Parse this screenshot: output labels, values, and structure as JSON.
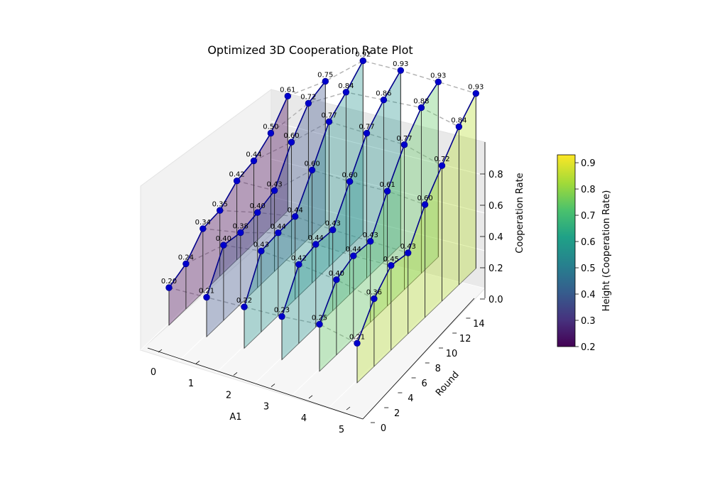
{
  "chart_data": {
    "type": "line",
    "title": "Optimized 3D Cooperation Rate Plot",
    "xlabel": "A1",
    "ylabel": "Round",
    "zlabel": "Cooperation Rate",
    "x_ticks": [
      "0",
      "1",
      "2",
      "3",
      "4",
      "5"
    ],
    "y_ticks": [
      "0",
      "2",
      "4",
      "6",
      "8",
      "10",
      "12",
      "14"
    ],
    "z_ticks": [
      "0.0",
      "0.2",
      "0.4",
      "0.6",
      "0.8"
    ],
    "ylim": [
      0,
      14
    ],
    "zlim": [
      0,
      0.93
    ],
    "rounds_sampled": [
      0,
      2,
      4,
      6,
      8,
      10,
      12,
      14
    ],
    "series": [
      {
        "a1": 0,
        "color": "#440154",
        "values": [
          0.2,
          0.24,
          0.34,
          0.35,
          0.42,
          0.44,
          0.5,
          0.61
        ]
      },
      {
        "a1": 1,
        "color": "#3b528b",
        "values": [
          0.21,
          0.4,
          0.38,
          0.4,
          0.43,
          0.6,
          0.72,
          0.75
        ]
      },
      {
        "a1": 2,
        "color": "#21918c",
        "values": [
          0.22,
          0.43,
          0.44,
          0.44,
          0.6,
          0.77,
          0.84,
          0.92
        ]
      },
      {
        "a1": 3,
        "color": "#21918c",
        "values": [
          0.23,
          0.42,
          0.44,
          0.43,
          0.6,
          0.77,
          0.86,
          0.93
        ]
      },
      {
        "a1": 4,
        "color": "#5ec962",
        "values": [
          0.25,
          0.4,
          0.44,
          0.43,
          0.61,
          0.77,
          0.88,
          0.93
        ]
      },
      {
        "a1": 5,
        "color": "#b5de2b",
        "values": [
          0.21,
          0.36,
          0.45,
          0.43,
          0.6,
          0.72,
          0.84,
          0.93
        ]
      }
    ],
    "colorbar": {
      "label": "Height (Cooperation Rate)",
      "ticks": [
        "0.2",
        "0.3",
        "0.4",
        "0.5",
        "0.6",
        "0.7",
        "0.8",
        "0.9"
      ],
      "range": [
        0.2,
        0.93
      ],
      "colormap": "viridis"
    },
    "line_color": "#00008b",
    "marker_color": "#0000cd",
    "connector_color": "#b0b0b0",
    "grid": true
  }
}
